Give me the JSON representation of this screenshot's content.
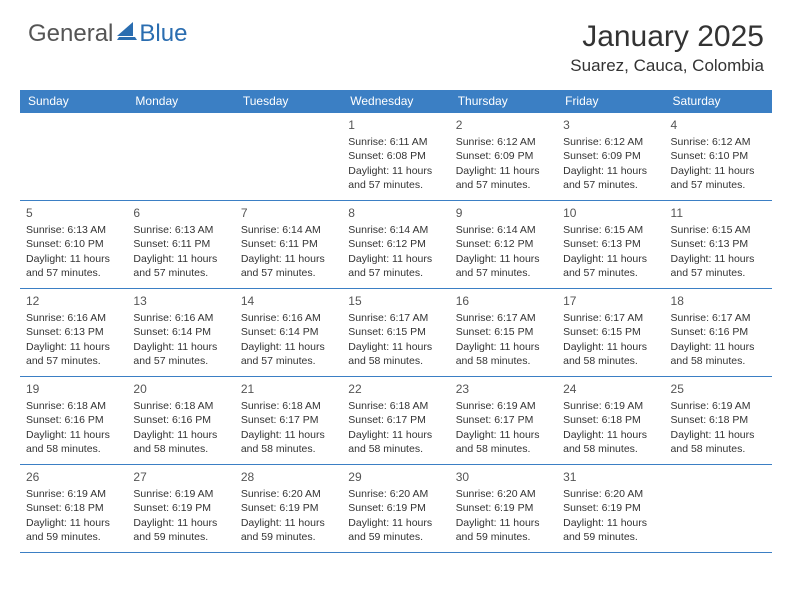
{
  "logo": {
    "general": "General",
    "blue": "Blue"
  },
  "title": "January 2025",
  "location": "Suarez, Cauca, Colombia",
  "colors": {
    "header_bg": "#3b7fc4",
    "header_text": "#ffffff",
    "border": "#3b7fc4",
    "text": "#333333",
    "logo_gray": "#555555",
    "logo_blue": "#2a6db0"
  },
  "day_headers": [
    "Sunday",
    "Monday",
    "Tuesday",
    "Wednesday",
    "Thursday",
    "Friday",
    "Saturday"
  ],
  "weeks": [
    [
      null,
      null,
      null,
      {
        "d": "1",
        "sr": "6:11 AM",
        "ss": "6:08 PM",
        "dl": "11 hours and 57 minutes."
      },
      {
        "d": "2",
        "sr": "6:12 AM",
        "ss": "6:09 PM",
        "dl": "11 hours and 57 minutes."
      },
      {
        "d": "3",
        "sr": "6:12 AM",
        "ss": "6:09 PM",
        "dl": "11 hours and 57 minutes."
      },
      {
        "d": "4",
        "sr": "6:12 AM",
        "ss": "6:10 PM",
        "dl": "11 hours and 57 minutes."
      }
    ],
    [
      {
        "d": "5",
        "sr": "6:13 AM",
        "ss": "6:10 PM",
        "dl": "11 hours and 57 minutes."
      },
      {
        "d": "6",
        "sr": "6:13 AM",
        "ss": "6:11 PM",
        "dl": "11 hours and 57 minutes."
      },
      {
        "d": "7",
        "sr": "6:14 AM",
        "ss": "6:11 PM",
        "dl": "11 hours and 57 minutes."
      },
      {
        "d": "8",
        "sr": "6:14 AM",
        "ss": "6:12 PM",
        "dl": "11 hours and 57 minutes."
      },
      {
        "d": "9",
        "sr": "6:14 AM",
        "ss": "6:12 PM",
        "dl": "11 hours and 57 minutes."
      },
      {
        "d": "10",
        "sr": "6:15 AM",
        "ss": "6:13 PM",
        "dl": "11 hours and 57 minutes."
      },
      {
        "d": "11",
        "sr": "6:15 AM",
        "ss": "6:13 PM",
        "dl": "11 hours and 57 minutes."
      }
    ],
    [
      {
        "d": "12",
        "sr": "6:16 AM",
        "ss": "6:13 PM",
        "dl": "11 hours and 57 minutes."
      },
      {
        "d": "13",
        "sr": "6:16 AM",
        "ss": "6:14 PM",
        "dl": "11 hours and 57 minutes."
      },
      {
        "d": "14",
        "sr": "6:16 AM",
        "ss": "6:14 PM",
        "dl": "11 hours and 57 minutes."
      },
      {
        "d": "15",
        "sr": "6:17 AM",
        "ss": "6:15 PM",
        "dl": "11 hours and 58 minutes."
      },
      {
        "d": "16",
        "sr": "6:17 AM",
        "ss": "6:15 PM",
        "dl": "11 hours and 58 minutes."
      },
      {
        "d": "17",
        "sr": "6:17 AM",
        "ss": "6:15 PM",
        "dl": "11 hours and 58 minutes."
      },
      {
        "d": "18",
        "sr": "6:17 AM",
        "ss": "6:16 PM",
        "dl": "11 hours and 58 minutes."
      }
    ],
    [
      {
        "d": "19",
        "sr": "6:18 AM",
        "ss": "6:16 PM",
        "dl": "11 hours and 58 minutes."
      },
      {
        "d": "20",
        "sr": "6:18 AM",
        "ss": "6:16 PM",
        "dl": "11 hours and 58 minutes."
      },
      {
        "d": "21",
        "sr": "6:18 AM",
        "ss": "6:17 PM",
        "dl": "11 hours and 58 minutes."
      },
      {
        "d": "22",
        "sr": "6:18 AM",
        "ss": "6:17 PM",
        "dl": "11 hours and 58 minutes."
      },
      {
        "d": "23",
        "sr": "6:19 AM",
        "ss": "6:17 PM",
        "dl": "11 hours and 58 minutes."
      },
      {
        "d": "24",
        "sr": "6:19 AM",
        "ss": "6:18 PM",
        "dl": "11 hours and 58 minutes."
      },
      {
        "d": "25",
        "sr": "6:19 AM",
        "ss": "6:18 PM",
        "dl": "11 hours and 58 minutes."
      }
    ],
    [
      {
        "d": "26",
        "sr": "6:19 AM",
        "ss": "6:18 PM",
        "dl": "11 hours and 59 minutes."
      },
      {
        "d": "27",
        "sr": "6:19 AM",
        "ss": "6:19 PM",
        "dl": "11 hours and 59 minutes."
      },
      {
        "d": "28",
        "sr": "6:20 AM",
        "ss": "6:19 PM",
        "dl": "11 hours and 59 minutes."
      },
      {
        "d": "29",
        "sr": "6:20 AM",
        "ss": "6:19 PM",
        "dl": "11 hours and 59 minutes."
      },
      {
        "d": "30",
        "sr": "6:20 AM",
        "ss": "6:19 PM",
        "dl": "11 hours and 59 minutes."
      },
      {
        "d": "31",
        "sr": "6:20 AM",
        "ss": "6:19 PM",
        "dl": "11 hours and 59 minutes."
      },
      null
    ]
  ],
  "labels": {
    "sunrise": "Sunrise: ",
    "sunset": "Sunset: ",
    "daylight": "Daylight: "
  }
}
